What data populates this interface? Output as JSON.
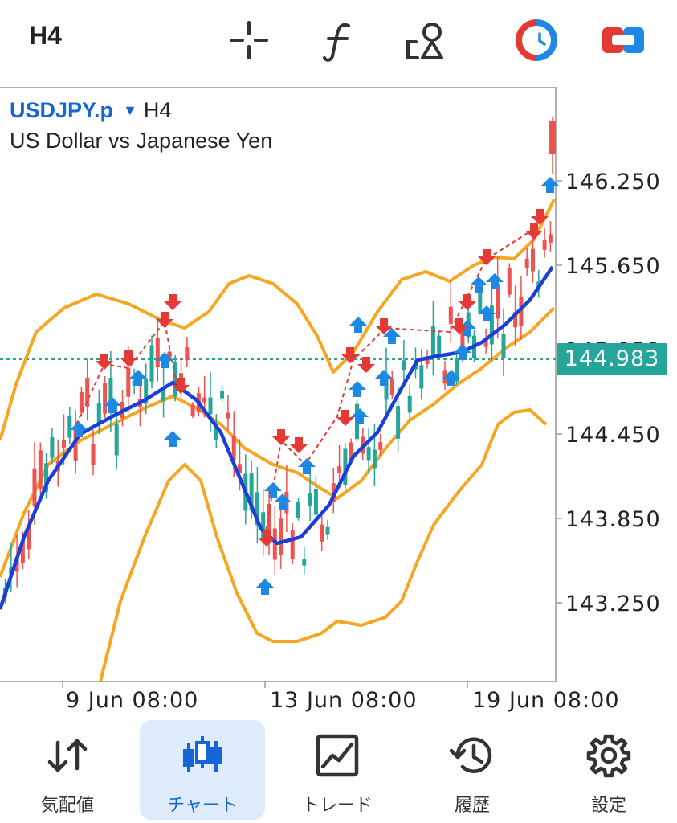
{
  "toolbar": {
    "timeframe": "H4",
    "icons": [
      "crosshair-icon",
      "indicators-icon",
      "objects-icon",
      "oneclick-trading-icon",
      "chart-mode-icon"
    ]
  },
  "chart": {
    "symbol": "USDJPY.p",
    "timeframe": "H4",
    "description": "US Dollar vs Japanese Yen",
    "current_price": "144.983",
    "price_labels": [
      "146.250",
      "145.650",
      "145.050",
      "144.450",
      "143.850",
      "143.250"
    ],
    "time_labels": [
      "9 Jun 08:00",
      "13 Jun 08:00",
      "19 Jun 08:00"
    ],
    "colors": {
      "bull": "#26a69a",
      "bear": "#ef5350",
      "ma": "#1a3ed8",
      "bands": "#f5a623",
      "buy_arrow": "#1e88e5",
      "sell_arrow": "#e53935"
    }
  },
  "nav": {
    "items": [
      {
        "label": "気配値",
        "icon": "quotes-icon"
      },
      {
        "label": "チャート",
        "icon": "chart-candles-icon"
      },
      {
        "label": "トレード",
        "icon": "trade-icon"
      },
      {
        "label": "履歴",
        "icon": "history-icon"
      },
      {
        "label": "設定",
        "icon": "settings-gear-icon"
      }
    ],
    "active": "チャート"
  }
}
